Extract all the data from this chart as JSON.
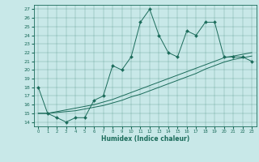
{
  "xlabel": "Humidex (Indice chaleur)",
  "bg_color": "#c8e8e8",
  "line_color": "#1a6b5a",
  "xlim": [
    -0.5,
    23.5
  ],
  "ylim": [
    13.5,
    27.5
  ],
  "xticks": [
    0,
    1,
    2,
    3,
    4,
    5,
    6,
    7,
    8,
    9,
    10,
    11,
    12,
    13,
    14,
    15,
    16,
    17,
    18,
    19,
    20,
    21,
    22,
    23
  ],
  "yticks": [
    14,
    15,
    16,
    17,
    18,
    19,
    20,
    21,
    22,
    23,
    24,
    25,
    26,
    27
  ],
  "series1_x": [
    0,
    1,
    2,
    3,
    4,
    5,
    6,
    7,
    8,
    9,
    10,
    11,
    12,
    13,
    14,
    15,
    16,
    17,
    18,
    19,
    20,
    21,
    22,
    23
  ],
  "series1_y": [
    18,
    15,
    14.5,
    14,
    14.5,
    14.5,
    16.5,
    17,
    20.5,
    20,
    21.5,
    25.5,
    27,
    24,
    22,
    21.5,
    24.5,
    24,
    25.5,
    25.5,
    21.5,
    21.5,
    21.5,
    21
  ],
  "series2_x": [
    0,
    1,
    2,
    3,
    4,
    5,
    6,
    7,
    8,
    9,
    10,
    11,
    12,
    13,
    14,
    15,
    16,
    17,
    18,
    19,
    20,
    21,
    22,
    23
  ],
  "series2_y": [
    15,
    15,
    15.2,
    15.4,
    15.6,
    15.8,
    16.0,
    16.3,
    16.6,
    17.0,
    17.4,
    17.8,
    18.2,
    18.6,
    19.0,
    19.4,
    19.8,
    20.2,
    20.6,
    21.0,
    21.4,
    21.6,
    21.8,
    22.0
  ],
  "series3_x": [
    0,
    1,
    2,
    3,
    4,
    5,
    6,
    7,
    8,
    9,
    10,
    11,
    12,
    13,
    14,
    15,
    16,
    17,
    18,
    19,
    20,
    21,
    22,
    23
  ],
  "series3_y": [
    15,
    15,
    15.1,
    15.2,
    15.3,
    15.5,
    15.7,
    15.9,
    16.2,
    16.5,
    16.9,
    17.2,
    17.6,
    18.0,
    18.4,
    18.8,
    19.2,
    19.6,
    20.1,
    20.5,
    20.9,
    21.2,
    21.4,
    21.6
  ]
}
